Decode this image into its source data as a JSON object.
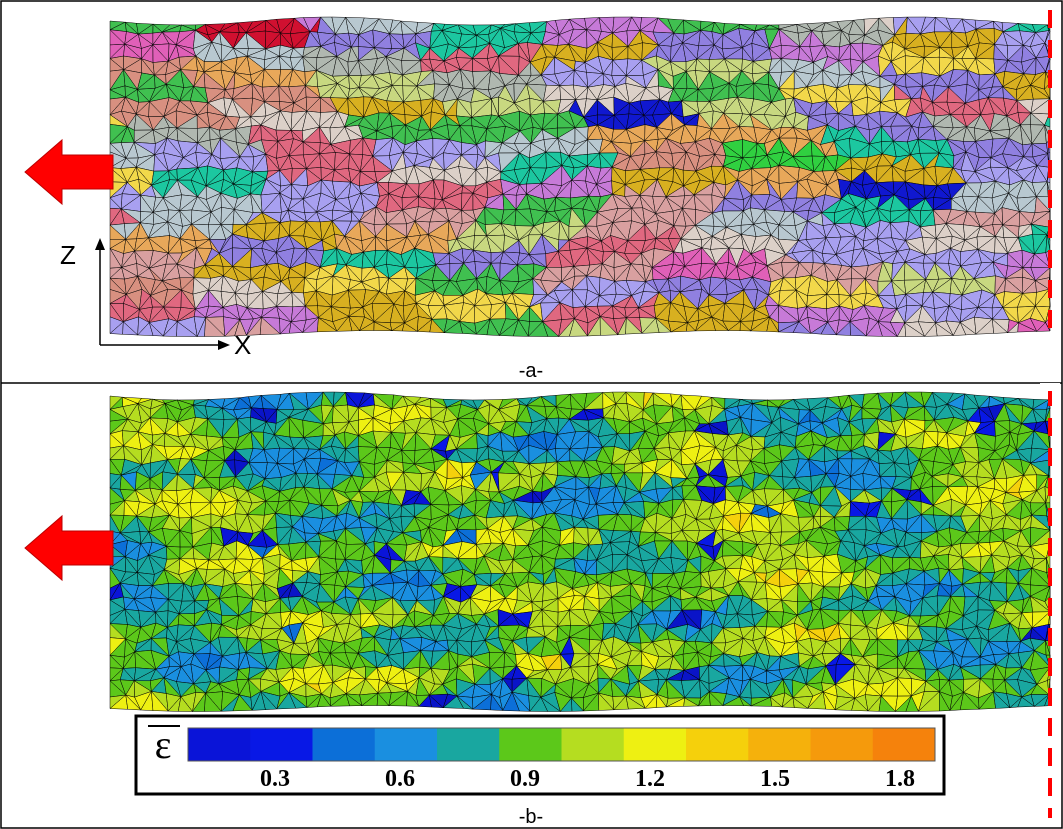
{
  "panel_a": {
    "label": "-a-",
    "axis_z": "Z",
    "axis_x": "X"
  },
  "panel_b": {
    "label": "-b-"
  },
  "colorbar": {
    "symbol": "ε",
    "ticks": [
      0.3,
      0.6,
      0.9,
      1.2,
      1.5,
      1.8
    ],
    "colors": [
      "#0a14c8",
      "#0a14d8",
      "#0818e6",
      "#0c6fd8",
      "#1a8fe0",
      "#19a7a0",
      "#5cc81a",
      "#b5dd20",
      "#eef012",
      "#f5d00c",
      "#f5b10c",
      "#f59a0c",
      "#f5820c"
    ]
  }
}
